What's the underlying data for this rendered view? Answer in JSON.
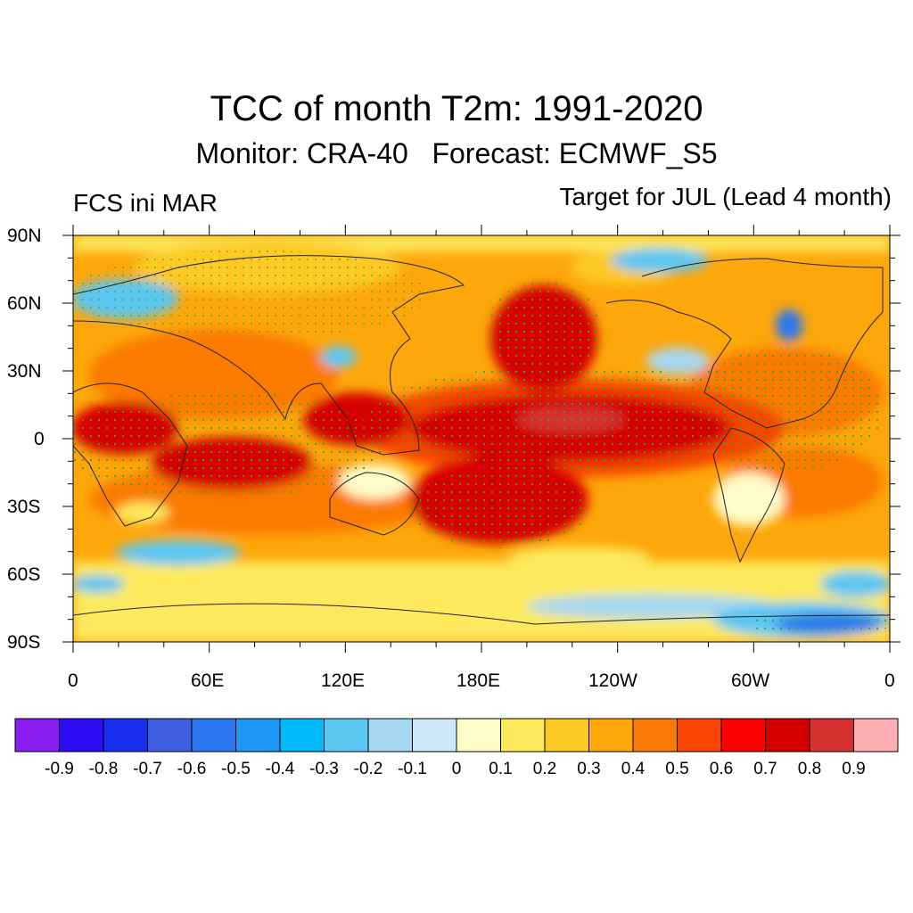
{
  "title": "TCC of month T2m: 1991-2020",
  "subtitle": "Monitor: CRA-40   Forecast: ECMWF_S5",
  "left_label": "FCS ini MAR",
  "right_label": "Target for JUL (Lead 4 month)",
  "map": {
    "lat_ticks": [
      "90N",
      "60N",
      "30N",
      "0",
      "30S",
      "60S",
      "90S"
    ],
    "lon_ticks": [
      "0",
      "60E",
      "120E",
      "180E",
      "120W",
      "60W",
      "0"
    ],
    "colorbar_labels": [
      "-0.9",
      "-0.8",
      "-0.7",
      "-0.6",
      "-0.5",
      "-0.4",
      "-0.3",
      "-0.2",
      "-0.1",
      "0",
      "0.1",
      "0.2",
      "0.3",
      "0.4",
      "0.5",
      "0.6",
      "0.7",
      "0.8",
      "0.9"
    ],
    "colorbar_colors": [
      "#8a1ef0",
      "#2c0cf5",
      "#1a2ef0",
      "#3d5fe0",
      "#2b78f0",
      "#1e96f5",
      "#00bbf8",
      "#5cc6f2",
      "#a5d7f0",
      "#cde8f8",
      "#fffcc8",
      "#fde95c",
      "#fdc924",
      "#fda70a",
      "#fb7a05",
      "#f84405",
      "#fe0000",
      "#d70000",
      "#d63232",
      "#ffafb3"
    ]
  }
}
